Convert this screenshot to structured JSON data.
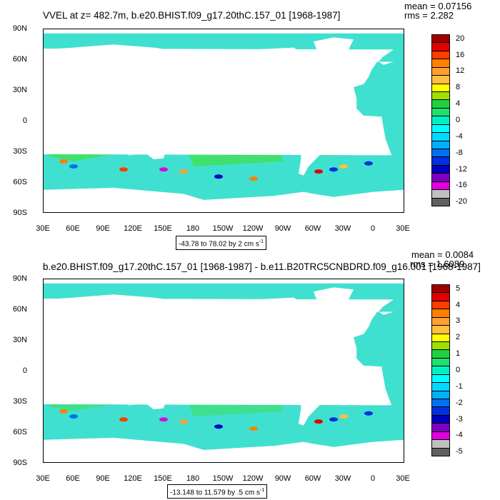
{
  "panels": [
    {
      "title": "VVEL at z= 482.7m, b.e20.BHIST.f09_g17.20thC.157_01 [1968-1987]",
      "mean": "mean = 0.07156",
      "rms": "rms = 2.282",
      "range_text": "-43.78 to 78.02 by 2 cm s",
      "range_unit_exp": "-1",
      "colorbar_labels": [
        "20",
        "16",
        "12",
        "8",
        "4",
        "0",
        "-4",
        "-8",
        "-12",
        "-16",
        "-20"
      ],
      "lat_labels": [
        "90N",
        "60N",
        "30N",
        "0",
        "30S",
        "60S",
        "90S"
      ],
      "lon_labels": [
        "30E",
        "60E",
        "90E",
        "120E",
        "150E",
        "180",
        "150W",
        "120W",
        "90W",
        "60W",
        "30W",
        "0",
        "30E"
      ]
    },
    {
      "title": "b.e20.BHIST.f09_g17.20thC.157_01 [1968-1987] - b.e11.B20TRC5CNBDRD.f09_g16.001 [1968-1987]",
      "mean": "mean = 0.0084",
      "rms": "rms = 1.6089",
      "range_text": "-13.148 to 11.579 by .5 cm s",
      "range_unit_exp": "-1",
      "colorbar_labels": [
        "5",
        "4",
        "3",
        "2",
        "1",
        "0",
        "-1",
        "-2",
        "-3",
        "-4",
        "-5"
      ],
      "lat_labels": [
        "90N",
        "60N",
        "30N",
        "0",
        "30S",
        "60S",
        "90S"
      ],
      "lon_labels": [
        "30E",
        "60E",
        "90E",
        "120E",
        "150E",
        "180",
        "150W",
        "120W",
        "90W",
        "60W",
        "30W",
        "0",
        "30E"
      ]
    }
  ],
  "colorbar_colors": [
    "#a00000",
    "#e00000",
    "#ff3c00",
    "#ff8000",
    "#ffa030",
    "#ffc040",
    "#ffff00",
    "#a0e000",
    "#20d040",
    "#20e070",
    "#00f0c0",
    "#00ffff",
    "#00d8ff",
    "#00b0ff",
    "#0070f0",
    "#0030e0",
    "#0000c0",
    "#8000c0",
    "#e000e0",
    "#c0c0c0",
    "#606060"
  ],
  "colors": {
    "ocean_base": "#40e0d0",
    "ocean_green": "#40e060",
    "land": "#ffffff"
  }
}
